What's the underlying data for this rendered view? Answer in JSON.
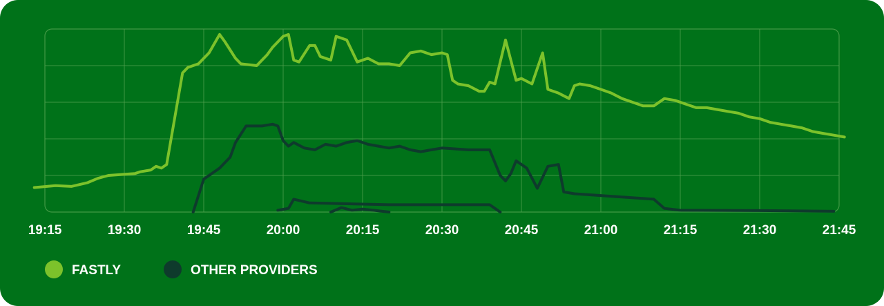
{
  "chart_data": {
    "type": "line",
    "title": "",
    "xlabel": "",
    "ylabel": "",
    "x_axis": {
      "type": "time",
      "ticks": [
        "19:15",
        "19:30",
        "19:45",
        "20:00",
        "20:15",
        "20:30",
        "20:45",
        "21:00",
        "21:15",
        "21:30",
        "21:45"
      ],
      "range": [
        "19:15",
        "21:45"
      ]
    },
    "y_axis": {
      "ticks_shown": false,
      "range": [
        0,
        5
      ],
      "gridlines": 5
    },
    "grid": true,
    "legend": {
      "placement": "bottom-left",
      "entries": [
        {
          "label": "FASTLY",
          "color": "#7cc22b"
        },
        {
          "label": "OTHER PROVIDERS",
          "color": "#0e3b2c"
        }
      ]
    },
    "series": [
      {
        "name": "FASTLY",
        "color": "#7cc22b",
        "points": [
          [
            "19:13",
            0.67
          ],
          [
            "19:17",
            0.72
          ],
          [
            "19:20",
            0.7
          ],
          [
            "19:23",
            0.8
          ],
          [
            "19:25",
            0.92
          ],
          [
            "19:27",
            1.0
          ],
          [
            "19:32",
            1.05
          ],
          [
            "19:33",
            1.1
          ],
          [
            "19:35",
            1.15
          ],
          [
            "19:36",
            1.25
          ],
          [
            "19:37",
            1.2
          ],
          [
            "19:38",
            1.3
          ],
          [
            "19:41",
            3.8
          ],
          [
            "19:42",
            3.95
          ],
          [
            "19:44",
            4.05
          ],
          [
            "19:46",
            4.35
          ],
          [
            "19:48",
            4.85
          ],
          [
            "19:49",
            4.65
          ],
          [
            "19:51",
            4.2
          ],
          [
            "19:52",
            4.05
          ],
          [
            "19:55",
            4.0
          ],
          [
            "19:57",
            4.3
          ],
          [
            "19:58",
            4.5
          ],
          [
            "20:00",
            4.8
          ],
          [
            "20:01",
            4.85
          ],
          [
            "20:02",
            4.15
          ],
          [
            "20:03",
            4.1
          ],
          [
            "20:05",
            4.55
          ],
          [
            "20:06",
            4.55
          ],
          [
            "20:07",
            4.25
          ],
          [
            "20:09",
            4.15
          ],
          [
            "20:10",
            4.8
          ],
          [
            "20:12",
            4.7
          ],
          [
            "20:14",
            4.1
          ],
          [
            "20:16",
            4.2
          ],
          [
            "20:18",
            4.05
          ],
          [
            "20:20",
            4.05
          ],
          [
            "20:22",
            4.0
          ],
          [
            "20:24",
            4.35
          ],
          [
            "20:26",
            4.4
          ],
          [
            "20:28",
            4.3
          ],
          [
            "20:30",
            4.35
          ],
          [
            "20:31",
            4.3
          ],
          [
            "20:32",
            3.6
          ],
          [
            "20:33",
            3.5
          ],
          [
            "20:35",
            3.45
          ],
          [
            "20:37",
            3.3
          ],
          [
            "20:38",
            3.3
          ],
          [
            "20:39",
            3.55
          ],
          [
            "20:40",
            3.5
          ],
          [
            "20:42",
            4.7
          ],
          [
            "20:44",
            3.6
          ],
          [
            "20:45",
            3.65
          ],
          [
            "20:47",
            3.5
          ],
          [
            "20:49",
            4.35
          ],
          [
            "20:50",
            3.35
          ],
          [
            "20:52",
            3.25
          ],
          [
            "20:54",
            3.1
          ],
          [
            "20:55",
            3.45
          ],
          [
            "20:56",
            3.5
          ],
          [
            "20:58",
            3.45
          ],
          [
            "21:00",
            3.35
          ],
          [
            "21:02",
            3.25
          ],
          [
            "21:04",
            3.1
          ],
          [
            "21:06",
            3.0
          ],
          [
            "21:08",
            2.9
          ],
          [
            "21:10",
            2.9
          ],
          [
            "21:12",
            3.1
          ],
          [
            "21:14",
            3.05
          ],
          [
            "21:16",
            2.95
          ],
          [
            "21:18",
            2.85
          ],
          [
            "21:20",
            2.85
          ],
          [
            "21:22",
            2.8
          ],
          [
            "21:24",
            2.75
          ],
          [
            "21:26",
            2.7
          ],
          [
            "21:28",
            2.6
          ],
          [
            "21:30",
            2.55
          ],
          [
            "21:32",
            2.45
          ],
          [
            "21:34",
            2.4
          ],
          [
            "21:36",
            2.35
          ],
          [
            "21:38",
            2.3
          ],
          [
            "21:40",
            2.2
          ],
          [
            "21:42",
            2.15
          ],
          [
            "21:44",
            2.1
          ],
          [
            "21:46",
            2.05
          ]
        ]
      },
      {
        "name": "OTHER PROVIDERS",
        "color": "#0e3b2c",
        "points": [
          [
            "19:43",
            0.0
          ],
          [
            "19:45",
            0.9
          ],
          [
            "19:48",
            1.2
          ],
          [
            "19:50",
            1.5
          ],
          [
            "19:51",
            1.9
          ],
          [
            "19:53",
            2.35
          ],
          [
            "19:56",
            2.35
          ],
          [
            "19:58",
            2.4
          ],
          [
            "19:59",
            2.35
          ],
          [
            "20:00",
            1.95
          ],
          [
            "20:01",
            1.8
          ],
          [
            "20:02",
            1.9
          ],
          [
            "20:04",
            1.75
          ],
          [
            "20:06",
            1.7
          ],
          [
            "20:08",
            1.85
          ],
          [
            "20:10",
            1.8
          ],
          [
            "20:12",
            1.9
          ],
          [
            "20:14",
            1.95
          ],
          [
            "20:16",
            1.85
          ],
          [
            "20:18",
            1.8
          ],
          [
            "20:20",
            1.75
          ],
          [
            "20:22",
            1.8
          ],
          [
            "20:24",
            1.7
          ],
          [
            "20:26",
            1.65
          ],
          [
            "20:28",
            1.7
          ],
          [
            "20:30",
            1.75
          ],
          [
            "20:35",
            1.7
          ],
          [
            "20:39",
            1.7
          ],
          [
            "20:41",
            1.0
          ],
          [
            "20:42",
            0.85
          ],
          [
            "20:43",
            1.05
          ],
          [
            "20:44",
            1.4
          ],
          [
            "20:46",
            1.2
          ],
          [
            "20:48",
            0.65
          ],
          [
            "20:50",
            1.25
          ],
          [
            "20:52",
            1.3
          ],
          [
            "20:53",
            0.55
          ],
          [
            "20:55",
            0.5
          ],
          [
            "21:00",
            0.45
          ],
          [
            "21:05",
            0.4
          ],
          [
            "21:10",
            0.35
          ],
          [
            "21:12",
            0.1
          ],
          [
            "21:15",
            0.05
          ],
          [
            "21:30",
            0.04
          ],
          [
            "21:44",
            0.02
          ]
        ]
      },
      {
        "name": "",
        "color": "#0e3b2c",
        "points": [
          [
            "19:59",
            0.05
          ],
          [
            "20:01",
            0.1
          ],
          [
            "20:02",
            0.35
          ],
          [
            "20:05",
            0.25
          ],
          [
            "20:20",
            0.2
          ],
          [
            "20:35",
            0.2
          ],
          [
            "20:39",
            0.2
          ],
          [
            "20:40",
            0.1
          ],
          [
            "20:41",
            0.0
          ]
        ]
      },
      {
        "name": "",
        "color": "#0e3b2c",
        "points": [
          [
            "20:09",
            0.0
          ],
          [
            "20:11",
            0.12
          ],
          [
            "20:13",
            0.05
          ],
          [
            "20:15",
            0.08
          ],
          [
            "20:17",
            0.05
          ],
          [
            "20:20",
            0.0
          ]
        ]
      }
    ]
  }
}
